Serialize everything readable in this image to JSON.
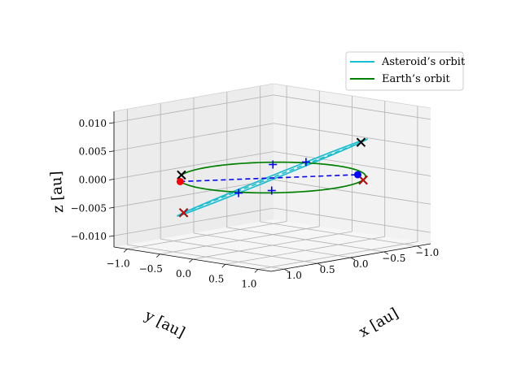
{
  "chart_data": {
    "type": "line",
    "projection": "3d",
    "xlabel": "x [au]",
    "ylabel": "y [au]",
    "zlabel": "z [au]",
    "xlim": [
      -1.2,
      1.2
    ],
    "ylim": [
      -1.2,
      1.2
    ],
    "zlim": [
      -0.012,
      0.012
    ],
    "xticks": [
      -1.0,
      -0.5,
      0.0,
      0.5,
      1.0
    ],
    "yticks": [
      -1.0,
      -0.5,
      0.0,
      0.5,
      1.0
    ],
    "zticks": [
      -0.01,
      -0.005,
      0.0,
      0.005,
      0.01
    ],
    "xtick_labels": [
      "−1.0",
      "−0.5",
      "0.0",
      "0.5",
      "1.0"
    ],
    "ytick_labels": [
      "−1.0",
      "−0.5",
      "0.0",
      "0.5",
      "1.0"
    ],
    "ztick_labels": [
      "−0.010",
      "−0.005",
      "0.000",
      "0.005",
      "0.010"
    ],
    "grid": true,
    "legend_position": "top-right",
    "series": [
      {
        "name": "Asteroid’s orbit",
        "color": "#17becf",
        "style": "solid",
        "ellipse": {
          "center": [
            0.0,
            0.0,
            0.0
          ],
          "axis_u": [
            -1.05,
            0.3,
            -0.0075
          ],
          "axis_v": [
            0.45,
            0.95,
            0.0
          ]
        }
      },
      {
        "name": "Earth’s orbit",
        "color": "#008000",
        "style": "solid",
        "ellipse": {
          "center": [
            0.0,
            0.0,
            0.0
          ],
          "axis_u": [
            1.0,
            0.0,
            0.0
          ],
          "axis_v": [
            0.0,
            1.0,
            0.0
          ]
        }
      }
    ],
    "dashed_lines": [
      {
        "color": "#17becf",
        "from": [
          -1.05,
          0.3,
          -0.0075
        ],
        "to": [
          1.05,
          -0.3,
          0.0075
        ]
      },
      {
        "color": "#0000ff",
        "from": [
          -0.95,
          0.45,
          -0.0015
        ],
        "to": [
          0.95,
          -0.35,
          0.0015
        ]
      }
    ],
    "markers": [
      {
        "symbol": "x",
        "color": "#000000",
        "point": [
          -1.05,
          0.3,
          -0.0075
        ]
      },
      {
        "symbol": "x",
        "color": "#000000",
        "point": [
          1.05,
          -0.3,
          0.0075
        ]
      },
      {
        "symbol": "x",
        "color": "#000000",
        "point": [
          -0.85,
          0.53,
          0.0
        ]
      },
      {
        "symbol": "x",
        "color": "#000000",
        "point": [
          0.85,
          -0.53,
          0.0
        ]
      },
      {
        "symbol": "x",
        "color": "#ff0000",
        "point": [
          -1.05,
          0.3,
          -0.0075
        ]
      },
      {
        "symbol": "x",
        "color": "#ff0000",
        "point": [
          0.85,
          -0.53,
          0.0
        ]
      },
      {
        "symbol": "o",
        "color": "#ff0000",
        "point": [
          -0.95,
          0.45,
          -0.0015
        ]
      },
      {
        "symbol": "o",
        "color": "#0000ff",
        "point": [
          0.95,
          -0.35,
          0.0015
        ]
      },
      {
        "symbol": "+",
        "color": "#0000ff",
        "point": [
          0.45,
          0.95,
          0.0
        ]
      },
      {
        "symbol": "+",
        "color": "#0000ff",
        "point": [
          -0.45,
          -0.95,
          0.0
        ]
      },
      {
        "symbol": "+",
        "color": "#0000ff",
        "point": [
          0.6,
          0.6,
          0.0
        ]
      },
      {
        "symbol": "+",
        "color": "#0000ff",
        "point": [
          -0.6,
          -0.6,
          0.0
        ]
      }
    ]
  }
}
